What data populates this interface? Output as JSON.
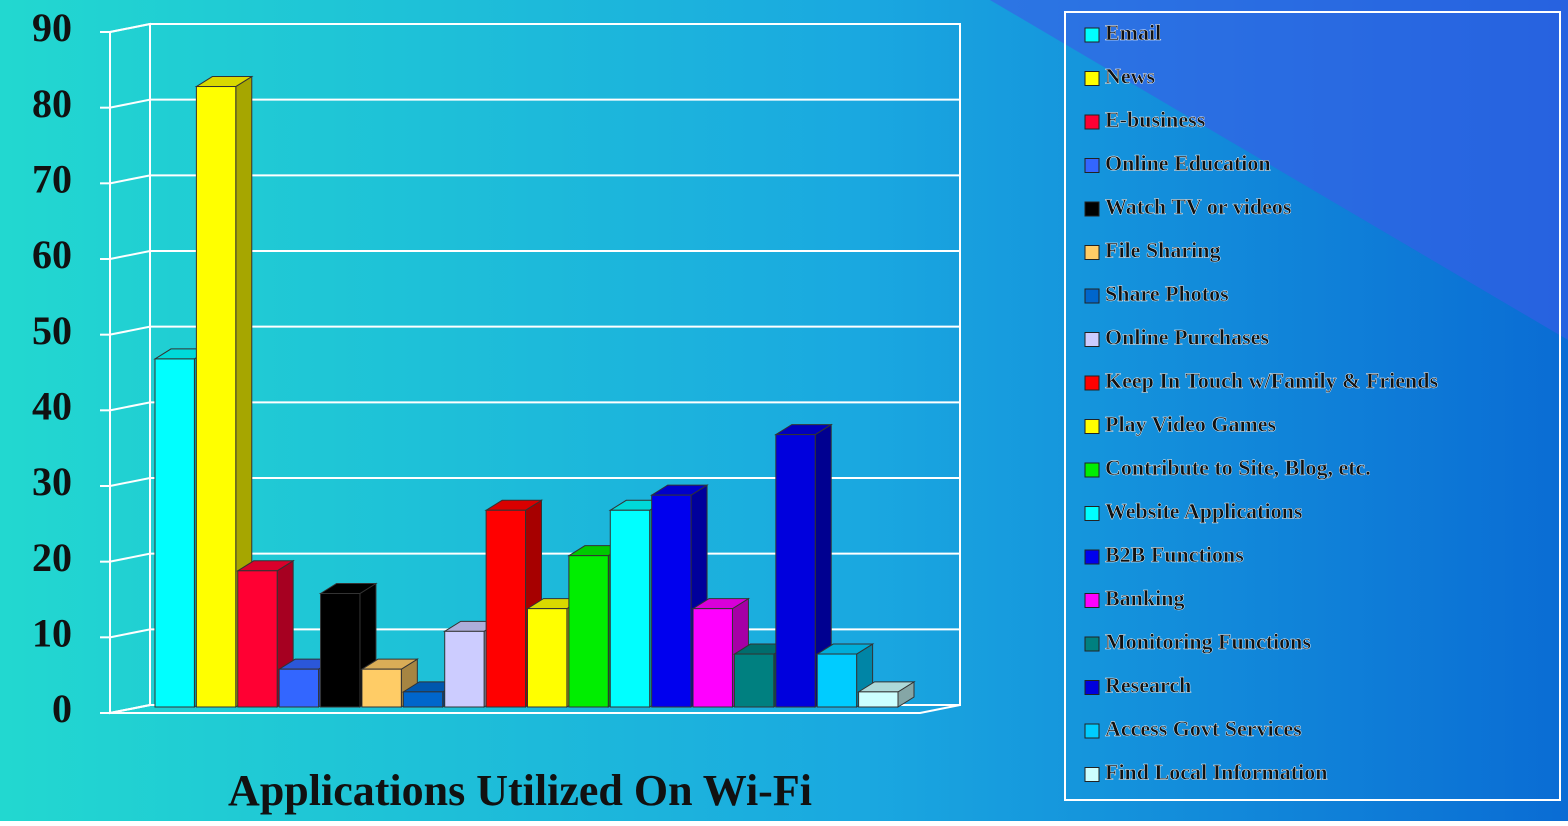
{
  "chart_data": {
    "type": "bar3d",
    "title": "Applications Utilized On Wi-Fi",
    "ylim": [
      0,
      90
    ],
    "yticks": [
      0,
      10,
      20,
      30,
      40,
      50,
      60,
      70,
      80,
      90
    ],
    "grid": true,
    "series": [
      {
        "name": "Email",
        "color": "#00ffff",
        "values": [
          46
        ]
      },
      {
        "name": "News",
        "color": "#ffff00",
        "values": [
          82
        ]
      },
      {
        "name": "E-business",
        "color": "#ff0033",
        "values": [
          18
        ]
      },
      {
        "name": "Online Education",
        "color": "#3366ff",
        "values": [
          5
        ]
      },
      {
        "name": "Watch TV or videos",
        "color": "#000000",
        "values": [
          15
        ]
      },
      {
        "name": "File Sharing",
        "color": "#ffcc66",
        "values": [
          5
        ]
      },
      {
        "name": "Share Photos",
        "color": "#0066cc",
        "values": [
          2
        ]
      },
      {
        "name": "Online Purchases",
        "color": "#ccccff",
        "values": [
          10
        ]
      },
      {
        "name": "Keep In Touch w/Family & Friends",
        "color": "#ff0000",
        "values": [
          26
        ]
      },
      {
        "name": "Play Video Games",
        "color": "#ffff00",
        "values": [
          13
        ]
      },
      {
        "name": "Contribute to Site, Blog, etc.",
        "color": "#00ee00",
        "values": [
          20
        ]
      },
      {
        "name": "Website Applications",
        "color": "#00ffff",
        "values": [
          26
        ]
      },
      {
        "name": "B2B Functions",
        "color": "#0000ee",
        "values": [
          28
        ]
      },
      {
        "name": "Banking",
        "color": "#ff00ff",
        "values": [
          13
        ]
      },
      {
        "name": "Monitoring Functions",
        "color": "#008080",
        "values": [
          7
        ]
      },
      {
        "name": "Research",
        "color": "#0000dd",
        "values": [
          36
        ]
      },
      {
        "name": "Access Govt Services",
        "color": "#00ccff",
        "values": [
          7
        ]
      },
      {
        "name": "Find Local Information",
        "color": "#ccffff",
        "values": [
          2
        ]
      }
    ]
  }
}
